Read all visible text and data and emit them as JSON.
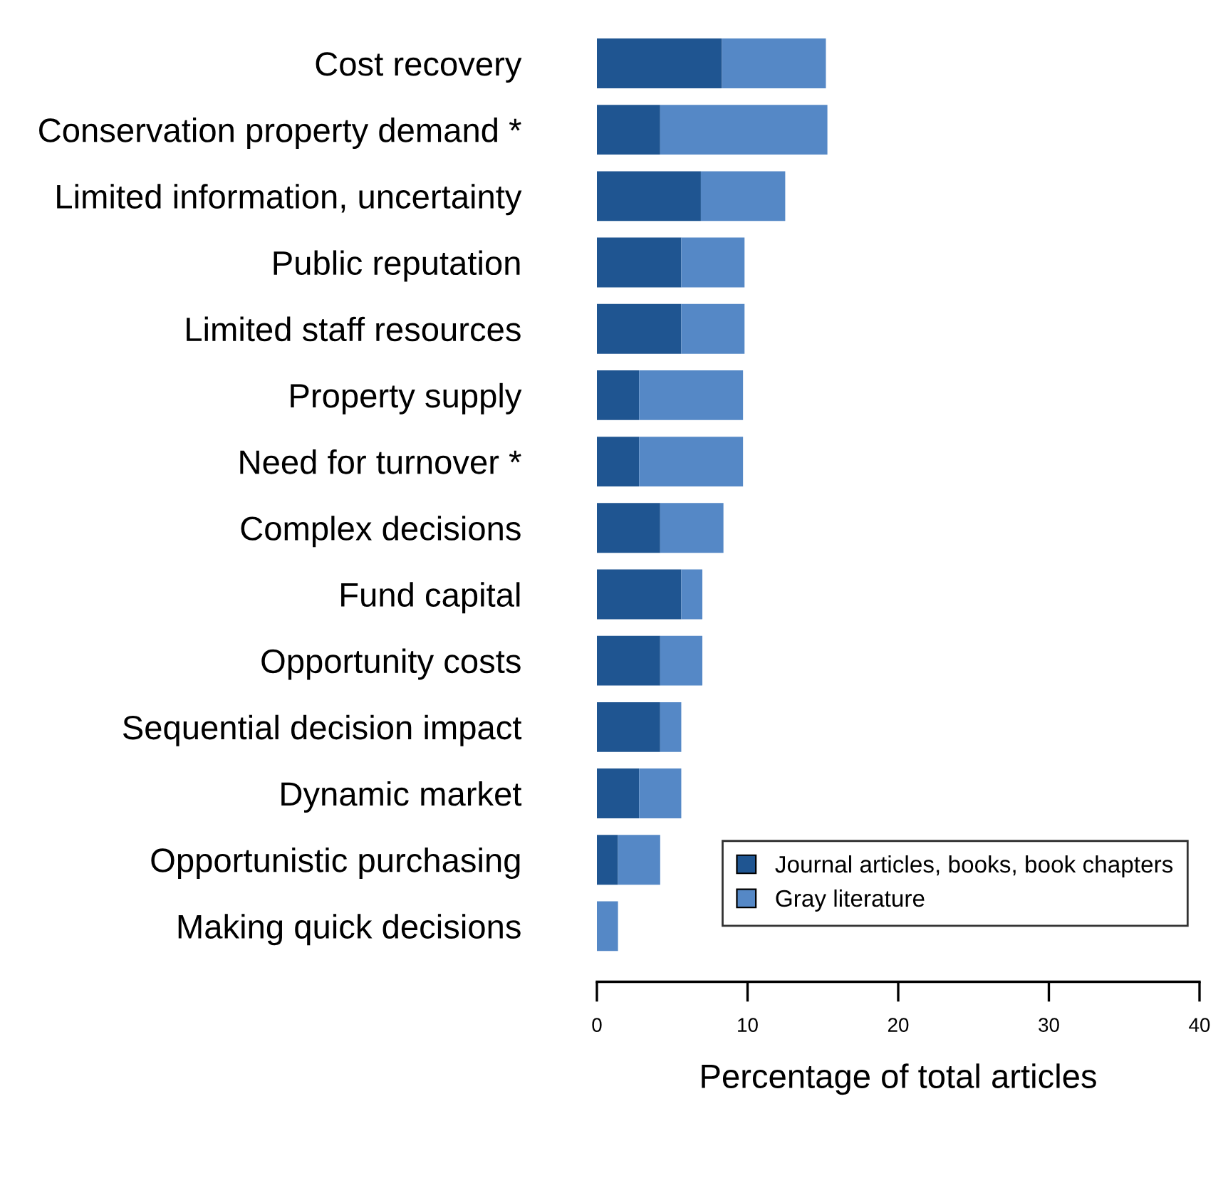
{
  "chart_data": {
    "type": "bar",
    "orientation": "horizontal",
    "stacked": true,
    "xlabel": "Percentage of total articles",
    "categories": [
      "Cost recovery",
      "Conservation property demand *",
      "Limited information, uncertainty",
      "Public reputation",
      "Limited staff resources",
      "Property supply",
      "Need for turnover *",
      "Complex decisions",
      "Fund capital",
      "Opportunity costs",
      "Sequential decision impact",
      "Dynamic market",
      "Opportunistic purchasing",
      "Making quick decisions"
    ],
    "series": [
      {
        "name": "Journal articles, books, book chapters",
        "color": "#1f5591",
        "values": [
          8.3,
          4.2,
          6.9,
          5.6,
          5.6,
          2.8,
          2.8,
          4.2,
          5.6,
          4.2,
          4.2,
          2.8,
          1.4,
          0
        ]
      },
      {
        "name": "Gray literature",
        "color": "#5588c6",
        "values": [
          6.9,
          11.1,
          5.6,
          4.2,
          4.2,
          6.9,
          6.9,
          4.2,
          1.4,
          2.8,
          1.4,
          2.8,
          2.8,
          1.4
        ]
      }
    ],
    "xlim": [
      0,
      40
    ],
    "xticks": [
      0,
      10,
      20,
      30,
      40
    ],
    "grid": false,
    "legend": "bottom right"
  }
}
